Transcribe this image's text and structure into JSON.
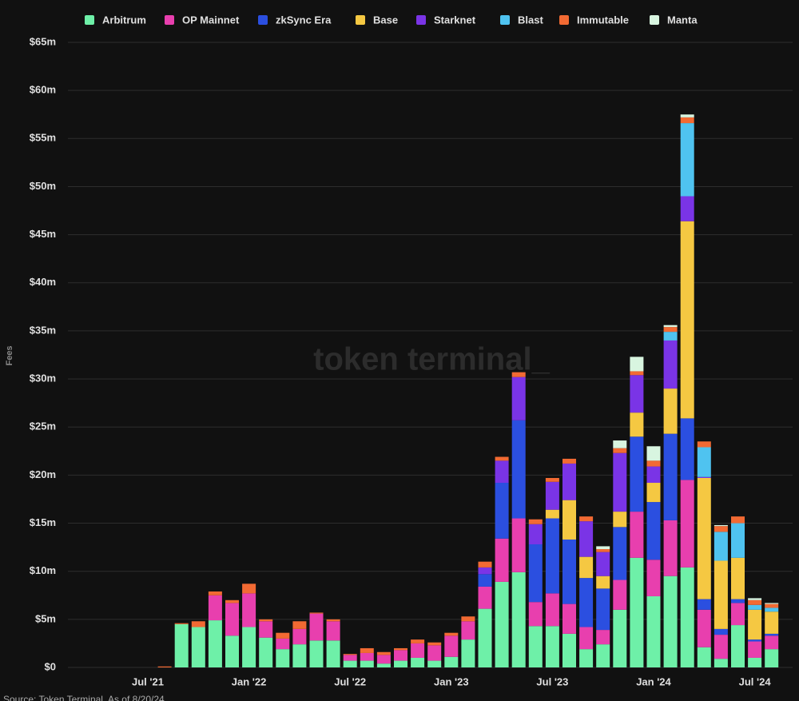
{
  "chart_data": {
    "type": "stacked_bar",
    "y_label": "Fees",
    "watermark": "token terminal_",
    "source": "Source: Token Terminal, As of 8/20/24",
    "legend": "top",
    "grid": true,
    "ylim": [
      0,
      65
    ],
    "yticks": [
      {
        "value": 0,
        "label": "$0"
      },
      {
        "value": 5,
        "label": "$5m"
      },
      {
        "value": 10,
        "label": "$10m"
      },
      {
        "value": 15,
        "label": "$15m"
      },
      {
        "value": 20,
        "label": "$20m"
      },
      {
        "value": 25,
        "label": "$25m"
      },
      {
        "value": 30,
        "label": "$30m"
      },
      {
        "value": 35,
        "label": "$35m"
      },
      {
        "value": 40,
        "label": "$40m"
      },
      {
        "value": 45,
        "label": "$45m"
      },
      {
        "value": 50,
        "label": "$50m"
      },
      {
        "value": 55,
        "label": "$55m"
      },
      {
        "value": 60,
        "label": "$60m"
      },
      {
        "value": 65,
        "label": "$65m"
      }
    ],
    "categories": [
      "Jul '21",
      null,
      null,
      null,
      null,
      null,
      "Jan '22",
      null,
      null,
      null,
      null,
      null,
      "Jul '22",
      null,
      null,
      null,
      null,
      null,
      "Jan '23",
      null,
      null,
      null,
      null,
      null,
      "Jul '23",
      null,
      null,
      null,
      null,
      null,
      "Jan '24",
      null,
      null,
      null,
      null,
      null,
      "Jul '24",
      null
    ],
    "series": [
      {
        "name": "Arbitrum",
        "color": "#6ef0a8",
        "values": [
          0,
          0,
          4.5,
          4.2,
          4.9,
          3.3,
          4.2,
          3.1,
          1.9,
          2.4,
          2.8,
          2.8,
          0.7,
          0.7,
          0.4,
          0.7,
          1.0,
          0.7,
          1.1,
          2.9,
          6.1,
          8.9,
          9.9,
          4.3,
          4.3,
          3.5,
          1.9,
          2.4,
          6.0,
          11.4,
          7.4,
          9.5,
          10.4,
          2.1,
          0.9,
          4.4,
          1.0,
          1.9
        ]
      },
      {
        "name": "OP Mainnet",
        "color": "#e83fae",
        "values": [
          0,
          0,
          0,
          0,
          2.6,
          3.4,
          3.5,
          1.7,
          1.1,
          1.6,
          2.8,
          2.0,
          0.6,
          0.8,
          0.9,
          1.1,
          1.5,
          1.6,
          2.2,
          1.9,
          2.3,
          4.5,
          5.6,
          2.5,
          3.4,
          3.1,
          2.3,
          1.5,
          3.1,
          4.8,
          3.8,
          5.8,
          9.1,
          3.9,
          2.5,
          2.3,
          1.7,
          1.4
        ]
      },
      {
        "name": "zkSync Era",
        "color": "#2b4fe0",
        "values": [
          0,
          0,
          0,
          0,
          0,
          0,
          0,
          0,
          0,
          0,
          0,
          0,
          0,
          0,
          0,
          0,
          0,
          0,
          0,
          0,
          1.3,
          5.8,
          10.2,
          6.0,
          7.8,
          6.7,
          5.1,
          4.3,
          5.5,
          7.8,
          6.0,
          9.0,
          6.4,
          1.1,
          0.6,
          0.4,
          0.2,
          0.2
        ]
      },
      {
        "name": "Base",
        "color": "#f5c842",
        "values": [
          0,
          0,
          0,
          0,
          0,
          0,
          0,
          0,
          0,
          0,
          0,
          0,
          0,
          0,
          0,
          0,
          0,
          0,
          0,
          0,
          0,
          0,
          0,
          0,
          0.9,
          4.1,
          2.2,
          1.3,
          1.6,
          2.5,
          2.0,
          4.7,
          20.5,
          12.6,
          7.1,
          4.3,
          3.1,
          2.3
        ]
      },
      {
        "name": "Starknet",
        "color": "#7a34e6",
        "values": [
          0,
          0,
          0,
          0,
          0,
          0,
          0,
          0,
          0,
          0,
          0,
          0,
          0,
          0,
          0,
          0,
          0,
          0,
          0,
          0,
          0.7,
          2.3,
          4.5,
          2.1,
          2.9,
          3.8,
          3.7,
          2.5,
          6.1,
          3.9,
          1.7,
          5.0,
          2.6,
          0.1,
          0,
          0,
          0,
          0
        ]
      },
      {
        "name": "Blast",
        "color": "#4fc3f0",
        "values": [
          0,
          0,
          0,
          0,
          0,
          0,
          0,
          0,
          0,
          0,
          0,
          0,
          0,
          0,
          0,
          0,
          0,
          0,
          0,
          0,
          0,
          0,
          0,
          0,
          0,
          0,
          0,
          0,
          0,
          0,
          0,
          0.9,
          7.6,
          3.1,
          3.0,
          3.6,
          0.5,
          0.4
        ]
      },
      {
        "name": "Immutable",
        "color": "#f26a33",
        "values": [
          0,
          0.1,
          0.1,
          0.6,
          0.4,
          0.3,
          1.0,
          0.2,
          0.6,
          0.8,
          0.1,
          0.2,
          0.1,
          0.5,
          0.3,
          0.2,
          0.4,
          0.3,
          0.3,
          0.5,
          0.6,
          0.4,
          0.5,
          0.5,
          0.4,
          0.5,
          0.5,
          0.3,
          0.5,
          0.4,
          0.6,
          0.5,
          0.6,
          0.6,
          0.6,
          0.7,
          0.5,
          0.4
        ]
      },
      {
        "name": "Manta",
        "color": "#d8f5e0",
        "values": [
          0,
          0,
          0,
          0,
          0,
          0,
          0,
          0,
          0,
          0,
          0,
          0,
          0,
          0,
          0,
          0,
          0,
          0,
          0,
          0,
          0,
          0,
          0,
          0,
          0,
          0,
          0,
          0.3,
          0.8,
          1.5,
          1.5,
          0.2,
          0.3,
          0,
          0.1,
          0,
          0.2,
          0.1
        ]
      }
    ]
  }
}
